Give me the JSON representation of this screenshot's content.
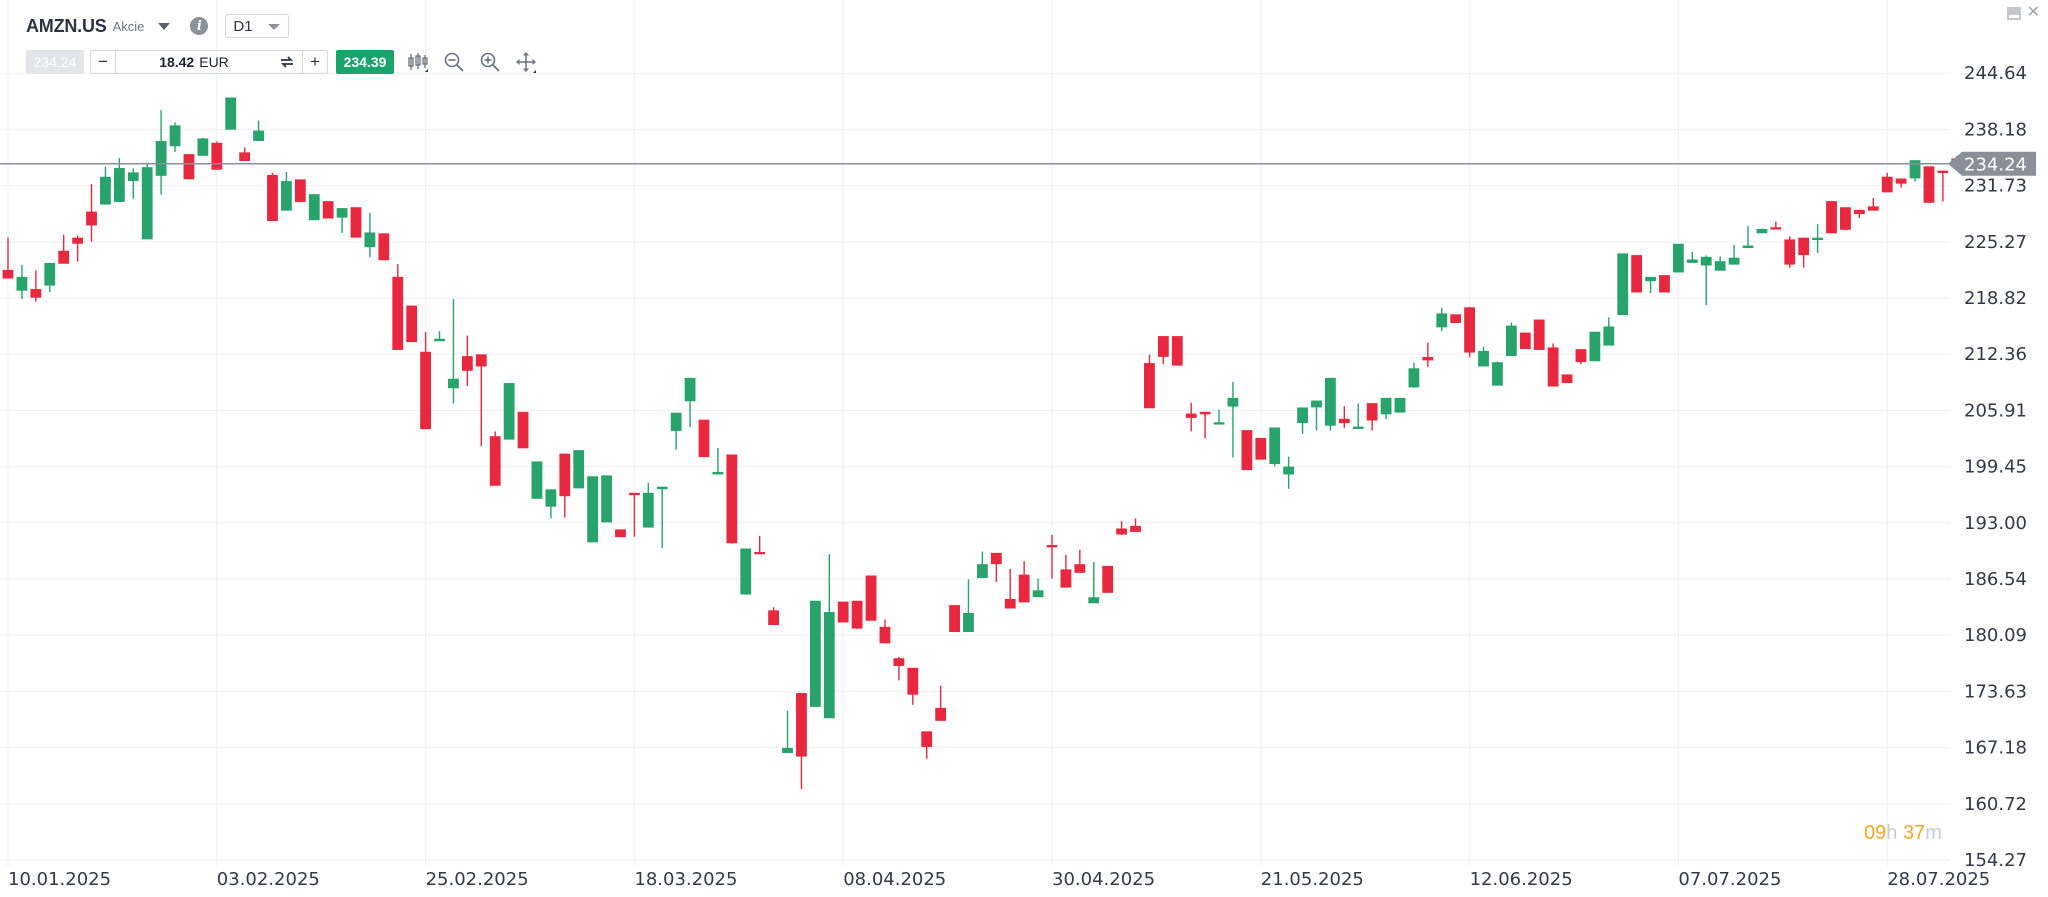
{
  "header": {
    "symbol": "AMZN.US",
    "asset_type": "Akcie",
    "timeframe": "D1",
    "info_icon": "info-icon"
  },
  "trade": {
    "sell_price": "234.24",
    "quantity": "18.42",
    "currency": "EUR",
    "buy_price": "234.39"
  },
  "tools": [
    "chart-type-icon",
    "zoom-out-icon",
    "zoom-in-icon",
    "move-icon"
  ],
  "countdown": {
    "hours": "09",
    "hours_unit": "h",
    "minutes": "37",
    "minutes_unit": "m"
  },
  "colors": {
    "up": "#27a36b",
    "down": "#e8283f",
    "price_line": "#8a9099",
    "price_tag": "#8a9099",
    "grid": "#eef0f2",
    "text": "#333a45"
  },
  "chart_data": {
    "type": "candlestick",
    "title": "",
    "xlabel": "",
    "ylabel": "",
    "ylim": [
      154.27,
      251.09
    ],
    "y_ticks": [
      "244.64",
      "238.18",
      "231.73",
      "225.27",
      "218.82",
      "212.36",
      "205.91",
      "199.45",
      "193.00",
      "186.54",
      "180.09",
      "173.63",
      "167.18",
      "160.72",
      "154.27"
    ],
    "x_ticks": [
      "10.01.2025",
      "03.02.2025",
      "25.02.2025",
      "18.03.2025",
      "08.04.2025",
      "30.04.2025",
      "21.05.2025",
      "12.06.2025",
      "07.07.2025",
      "28.07.2025"
    ],
    "x_tick_index": [
      0,
      15,
      30,
      45,
      60,
      75,
      90,
      105,
      120,
      135
    ],
    "current_price": "234.24",
    "grid": true,
    "candles": [
      [
        222.0,
        221.1,
        225.8,
        223.9
      ],
      [
        219.7,
        221.2,
        222.6,
        218.7
      ],
      [
        219.8,
        218.9,
        222.0,
        218.4
      ],
      [
        220.3,
        222.8,
        222.3,
        219.5
      ],
      [
        224.2,
        222.8,
        223.4,
        226.1
      ],
      [
        225.7,
        225.1,
        226.0,
        223.0
      ],
      [
        228.7,
        227.2,
        231.9,
        225.3
      ],
      [
        229.6,
        232.7,
        231.0,
        233.9
      ],
      [
        229.9,
        233.7,
        234.9,
        231.6
      ],
      [
        232.3,
        233.2,
        230.2,
        233.7
      ],
      [
        225.6,
        233.8,
        225.7,
        234.2
      ],
      [
        232.9,
        236.8,
        240.4,
        230.7
      ],
      [
        236.3,
        238.6,
        239.0,
        235.6
      ],
      [
        235.3,
        232.5,
        233.7,
        233.7
      ],
      [
        235.2,
        237.1,
        237.2,
        236.7
      ],
      [
        236.6,
        233.6,
        236.8,
        234.0
      ],
      [
        238.2,
        241.8,
        240.9,
        238.8
      ],
      [
        235.5,
        234.6,
        236.1,
        235.0
      ],
      [
        236.9,
        238.0,
        239.2,
        237.8
      ],
      [
        232.9,
        227.7,
        233.2,
        228.6
      ],
      [
        228.9,
        232.2,
        233.3,
        229.2
      ],
      [
        232.4,
        229.9,
        232.1,
        231.3
      ],
      [
        227.8,
        230.7,
        230.5,
        227.8
      ],
      [
        229.9,
        228.0,
        229.1,
        229.3
      ],
      [
        228.1,
        229.1,
        228.5,
        226.3
      ],
      [
        229.2,
        225.8,
        226.6,
        228.6
      ],
      [
        224.7,
        226.3,
        228.6,
        223.5
      ],
      [
        226.2,
        223.2,
        226.2,
        223.8
      ],
      [
        221.2,
        212.9,
        222.7,
        213.0
      ],
      [
        217.9,
        213.8,
        216.1,
        214.1
      ],
      [
        212.6,
        203.8,
        214.9,
        211.7
      ],
      [
        213.9,
        214.1,
        214.1,
        215.0
      ],
      [
        208.5,
        209.5,
        218.7,
        206.7
      ],
      [
        212.1,
        210.5,
        208.7,
        214.5
      ],
      [
        212.3,
        211.0,
        201.8,
        204.0
      ],
      [
        202.9,
        197.3,
        203.5,
        201.4
      ],
      [
        202.6,
        209.0,
        208.8,
        208.7
      ],
      [
        205.7,
        201.6,
        201.6,
        204.6
      ],
      [
        195.8,
        200.0,
        198.4,
        199.4
      ],
      [
        194.9,
        196.8,
        193.5,
        193.8
      ],
      [
        200.9,
        196.1,
        193.6,
        195.0
      ],
      [
        197.0,
        201.3,
        201.0,
        200.2
      ],
      [
        190.8,
        198.3,
        194.6,
        198.0
      ],
      [
        193.1,
        198.4,
        196.4,
        196.5
      ],
      [
        192.2,
        191.4,
        192.2,
        192.2
      ],
      [
        196.4,
        196.3,
        191.4,
        193.1
      ],
      [
        192.5,
        196.4,
        197.6,
        193.2
      ],
      [
        196.9,
        197.1,
        190.1,
        190.7
      ],
      [
        203.6,
        205.6,
        201.4,
        204.6
      ],
      [
        207.0,
        209.6,
        205.8,
        204.0
      ],
      [
        204.8,
        200.6,
        202.3,
        202.2
      ],
      [
        198.6,
        198.8,
        201.6,
        200.8
      ],
      [
        200.8,
        190.7,
        198.7,
        190.6
      ],
      [
        184.8,
        190.0,
        188.8,
        189.7
      ],
      [
        189.6,
        189.5,
        191.5,
        190.9
      ],
      [
        182.9,
        181.3,
        183.3,
        181.7
      ],
      [
        166.6,
        167.1,
        171.4,
        169.3
      ],
      [
        173.4,
        166.2,
        171.8,
        162.4
      ],
      [
        171.9,
        184.0,
        171.9,
        180.3
      ],
      [
        170.6,
        182.7,
        186.3,
        189.4
      ],
      [
        183.9,
        181.6,
        183.1,
        183.6
      ],
      [
        184.0,
        180.9,
        182.2,
        180.8
      ],
      [
        186.9,
        181.8,
        183.8,
        181.9
      ],
      [
        181.0,
        179.2,
        181.9,
        180.9
      ],
      [
        177.4,
        176.6,
        174.9,
        177.6
      ],
      [
        176.3,
        173.3,
        172.1,
        173.0
      ],
      [
        169.0,
        167.3,
        168.2,
        165.9
      ],
      [
        171.7,
        170.3,
        174.3,
        173.1
      ],
      [
        183.5,
        180.5,
        180.8,
        182.2
      ],
      [
        180.5,
        182.6,
        186.5,
        185.0
      ],
      [
        186.7,
        188.2,
        189.7,
        186.9
      ],
      [
        189.5,
        188.3,
        186.2,
        187.1
      ],
      [
        184.2,
        183.2,
        184.2,
        187.7
      ],
      [
        187.0,
        183.9,
        188.6,
        185.3
      ],
      [
        184.5,
        185.2,
        186.6,
        186.4
      ],
      [
        190.4,
        190.3,
        186.6,
        191.6
      ],
      [
        187.6,
        185.6,
        189.3,
        187.6
      ],
      [
        188.2,
        187.3,
        189.9,
        188.6
      ],
      [
        183.8,
        184.4,
        188.5,
        183.9
      ],
      [
        188.0,
        185.0,
        187.1,
        187.3
      ],
      [
        192.3,
        191.7,
        193.2,
        191.6
      ],
      [
        192.6,
        192.0,
        192.9,
        193.5
      ],
      [
        211.3,
        206.2,
        212.3,
        206.6
      ],
      [
        214.4,
        212.1,
        211.2,
        211.5
      ],
      [
        214.4,
        211.1,
        211.5,
        211.1
      ],
      [
        205.5,
        205.1,
        206.8,
        203.5
      ],
      [
        205.7,
        205.5,
        202.7,
        204.0
      ],
      [
        204.4,
        204.5,
        205.2,
        206.0
      ],
      [
        206.4,
        207.3,
        209.2,
        200.5
      ],
      [
        203.6,
        199.1,
        200.7,
        199.2
      ],
      [
        202.7,
        200.3,
        200.4,
        200.5
      ],
      [
        199.8,
        203.9,
        199.5,
        200.3
      ],
      [
        198.6,
        199.4,
        196.9,
        200.6
      ],
      [
        204.5,
        206.2,
        204.6,
        203.2
      ],
      [
        206.3,
        207.0,
        203.6,
        204.8
      ],
      [
        204.2,
        209.6,
        205.9,
        203.6
      ],
      [
        204.9,
        204.5,
        206.4,
        203.9
      ],
      [
        204.0,
        204.0,
        206.7,
        204.3
      ],
      [
        206.7,
        204.8,
        203.6,
        204.0
      ],
      [
        205.5,
        207.3,
        207.3,
        204.9
      ],
      [
        205.7,
        207.3,
        206.4,
        206.1
      ],
      [
        208.6,
        210.7,
        211.4,
        208.5
      ],
      [
        212.0,
        211.7,
        213.7,
        210.9
      ],
      [
        215.5,
        217.0,
        217.7,
        215.0
      ],
      [
        216.9,
        216.0,
        216.5,
        216.4
      ],
      [
        217.7,
        212.6,
        212.0,
        217.8
      ],
      [
        211.0,
        212.7,
        211.4,
        213.2
      ],
      [
        208.8,
        211.4,
        208.8,
        211.5
      ],
      [
        212.2,
        215.6,
        215.7,
        216.0
      ],
      [
        214.8,
        213.0,
        214.1,
        213.1
      ],
      [
        216.3,
        212.9,
        215.2,
        214.1
      ],
      [
        213.1,
        208.7,
        213.6,
        209.5
      ],
      [
        210.0,
        209.1,
        209.9,
        209.8
      ],
      [
        212.9,
        211.5,
        212.5,
        211.2
      ],
      [
        211.6,
        214.9,
        214.3,
        214.0
      ],
      [
        213.4,
        215.5,
        216.6,
        216.3
      ],
      [
        216.9,
        223.9,
        222.8,
        221.4
      ],
      [
        223.7,
        219.5,
        222.9,
        222.4
      ],
      [
        220.8,
        221.2,
        219.4,
        219.8
      ],
      [
        221.4,
        219.5,
        221.1,
        220.8
      ],
      [
        221.8,
        225.0,
        223.5,
        222.3
      ],
      [
        222.9,
        223.2,
        223.8,
        224.1
      ],
      [
        222.6,
        223.5,
        223.7,
        218.0
      ],
      [
        222.0,
        223.0,
        223.6,
        222.0
      ],
      [
        222.7,
        223.4,
        224.9,
        222.8
      ],
      [
        224.6,
        224.8,
        227.1,
        225.2
      ],
      [
        226.3,
        226.7,
        226.8,
        226.3
      ],
      [
        226.9,
        226.8,
        227.6,
        227.4
      ],
      [
        225.5,
        222.7,
        225.9,
        222.3
      ],
      [
        225.7,
        223.8,
        222.3,
        223.2
      ],
      [
        225.6,
        225.7,
        227.3,
        224.0
      ],
      [
        229.9,
        226.3,
        227.1,
        227.2
      ],
      [
        229.2,
        226.7,
        229.1,
        226.6
      ],
      [
        228.9,
        228.5,
        228.0,
        228.3
      ],
      [
        229.3,
        228.9,
        230.3,
        228.9
      ],
      [
        232.7,
        231.0,
        233.2,
        231.3
      ],
      [
        232.5,
        232.0,
        231.5,
        232.2
      ],
      [
        232.6,
        234.6,
        233.3,
        232.2
      ],
      [
        233.9,
        229.8,
        233.9,
        230.6
      ],
      [
        233.4,
        233.3,
        230.7,
        229.9
      ],
      [
        234.8,
        234.6,
        234.6,
        235.1
      ]
    ]
  }
}
